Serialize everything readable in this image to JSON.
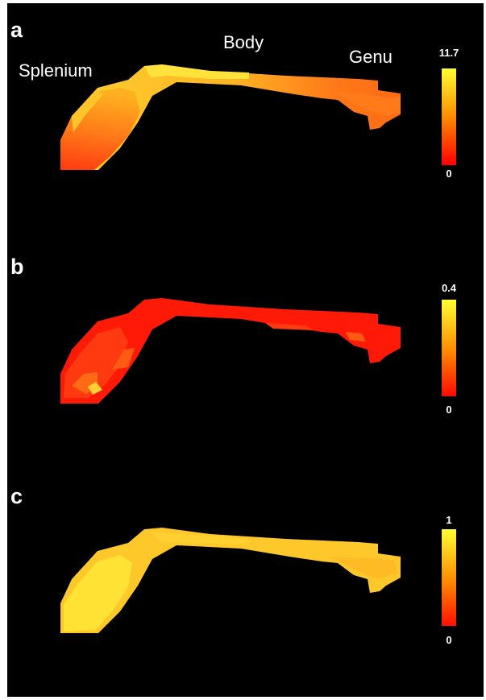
{
  "figure": {
    "region_labels": {
      "splenium": "Splenium",
      "body": "Body",
      "genu": "Genu"
    },
    "colormap": {
      "low_color": "#ff0000",
      "mid_color": "#ff8c00",
      "high_color": "#ffff33"
    },
    "panels": [
      {
        "letter": "a",
        "scale_min": "0",
        "scale_max": "11.7"
      },
      {
        "letter": "b",
        "scale_min": "0",
        "scale_max": "0.4"
      },
      {
        "letter": "c",
        "scale_min": "0",
        "scale_max": "1"
      }
    ]
  }
}
